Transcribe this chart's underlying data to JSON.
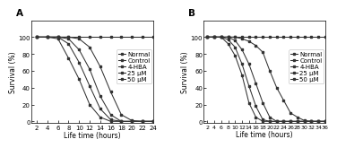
{
  "panel_A": {
    "title": "A",
    "xlabel": "Life time (hours)",
    "ylabel": "Survival (%)",
    "xlim": [
      1,
      24
    ],
    "ylim": [
      -2,
      120
    ],
    "xticks": [
      2,
      4,
      6,
      8,
      10,
      12,
      14,
      16,
      18,
      20,
      22,
      24
    ],
    "yticks": [
      0,
      20,
      40,
      60,
      80,
      100
    ],
    "series": {
      "Normal": {
        "x": [
          2,
          4,
          6,
          8,
          10,
          12,
          14,
          16,
          18,
          20,
          22,
          24
        ],
        "y": [
          100,
          100,
          100,
          100,
          100,
          100,
          100,
          100,
          100,
          100,
          100,
          100
        ]
      },
      "Control": {
        "x": [
          2,
          4,
          6,
          8,
          10,
          12,
          14,
          16,
          18,
          20,
          22,
          24
        ],
        "y": [
          100,
          100,
          98,
          75,
          50,
          20,
          5,
          0,
          0,
          0,
          0,
          0
        ]
      },
      "4-HBA": {
        "x": [
          2,
          4,
          6,
          8,
          10,
          12,
          14,
          16,
          18,
          20,
          22,
          24
        ],
        "y": [
          100,
          100,
          100,
          92,
          70,
          42,
          15,
          2,
          0,
          0,
          0,
          0
        ]
      },
      "25 μM": {
        "x": [
          2,
          4,
          6,
          8,
          10,
          12,
          14,
          16,
          18,
          20,
          22,
          24
        ],
        "y": [
          100,
          100,
          100,
          98,
          85,
          62,
          30,
          8,
          0,
          0,
          0,
          0
        ]
      },
      "50 μM": {
        "x": [
          2,
          4,
          6,
          8,
          10,
          12,
          14,
          16,
          18,
          20,
          22,
          24
        ],
        "y": [
          100,
          100,
          100,
          100,
          98,
          88,
          65,
          35,
          8,
          1,
          0,
          0
        ]
      }
    },
    "legend_order": [
      "Normal",
      "Control",
      "4-HBA",
      "25 μM",
      "50 μM"
    ]
  },
  "panel_B": {
    "title": "B",
    "xlabel": "Life time (hours)",
    "ylabel": "Survival (%)",
    "xlim": [
      1,
      36
    ],
    "ylim": [
      -2,
      120
    ],
    "xticks": [
      2,
      4,
      6,
      8,
      10,
      12,
      14,
      16,
      18,
      20,
      22,
      24,
      26,
      28,
      30,
      32,
      34,
      36
    ],
    "xtick_labels": [
      "2",
      "4",
      "6",
      "8",
      "10",
      "12",
      "14",
      "16",
      "18",
      "20",
      "22",
      "24",
      "26",
      "28",
      "30",
      "32",
      "34",
      "36"
    ],
    "yticks": [
      0,
      20,
      40,
      60,
      80,
      100
    ],
    "series": {
      "Normal": {
        "x": [
          2,
          4,
          6,
          8,
          10,
          12,
          14,
          16,
          18,
          20,
          22,
          24,
          26,
          28,
          30,
          32,
          34,
          36
        ],
        "y": [
          100,
          100,
          100,
          100,
          100,
          100,
          100,
          100,
          100,
          100,
          100,
          100,
          100,
          100,
          100,
          100,
          100,
          100
        ]
      },
      "Control": {
        "x": [
          2,
          4,
          6,
          8,
          10,
          12,
          14,
          16,
          18,
          20,
          22,
          24,
          26,
          28,
          30,
          32,
          34,
          36
        ],
        "y": [
          100,
          100,
          100,
          92,
          78,
          55,
          22,
          5,
          0,
          0,
          0,
          0,
          0,
          0,
          0,
          0,
          0,
          0
        ]
      },
      "4-HBA": {
        "x": [
          2,
          4,
          6,
          8,
          10,
          12,
          14,
          16,
          18,
          20,
          22,
          24,
          26,
          28,
          30,
          32,
          34,
          36
        ],
        "y": [
          100,
          100,
          100,
          97,
          88,
          68,
          42,
          18,
          2,
          0,
          0,
          0,
          0,
          0,
          0,
          0,
          0,
          0
        ]
      },
      "25 μM": {
        "x": [
          2,
          4,
          6,
          8,
          10,
          12,
          14,
          16,
          18,
          20,
          22,
          24,
          26,
          28,
          30,
          32,
          34,
          36
        ],
        "y": [
          100,
          100,
          100,
          100,
          96,
          85,
          68,
          45,
          22,
          5,
          0,
          0,
          0,
          0,
          0,
          0,
          0,
          0
        ]
      },
      "50 μM": {
        "x": [
          2,
          4,
          6,
          8,
          10,
          12,
          14,
          16,
          18,
          20,
          22,
          24,
          26,
          28,
          30,
          32,
          34,
          36
        ],
        "y": [
          100,
          100,
          100,
          100,
          100,
          98,
          95,
          90,
          82,
          60,
          40,
          25,
          10,
          5,
          1,
          0,
          0,
          0
        ]
      }
    },
    "legend_order": [
      "Normal",
      "Control",
      "4-HBA",
      "25 μM",
      "50 μM"
    ]
  },
  "line_color": "#333333",
  "marker": "s",
  "markersize": 2.0,
  "linewidth": 0.75,
  "background_color": "#ffffff",
  "axis_fontsize": 5.5,
  "tick_fontsize": 5.0,
  "legend_fontsize": 5.0,
  "panel_label_fontsize": 7.5
}
